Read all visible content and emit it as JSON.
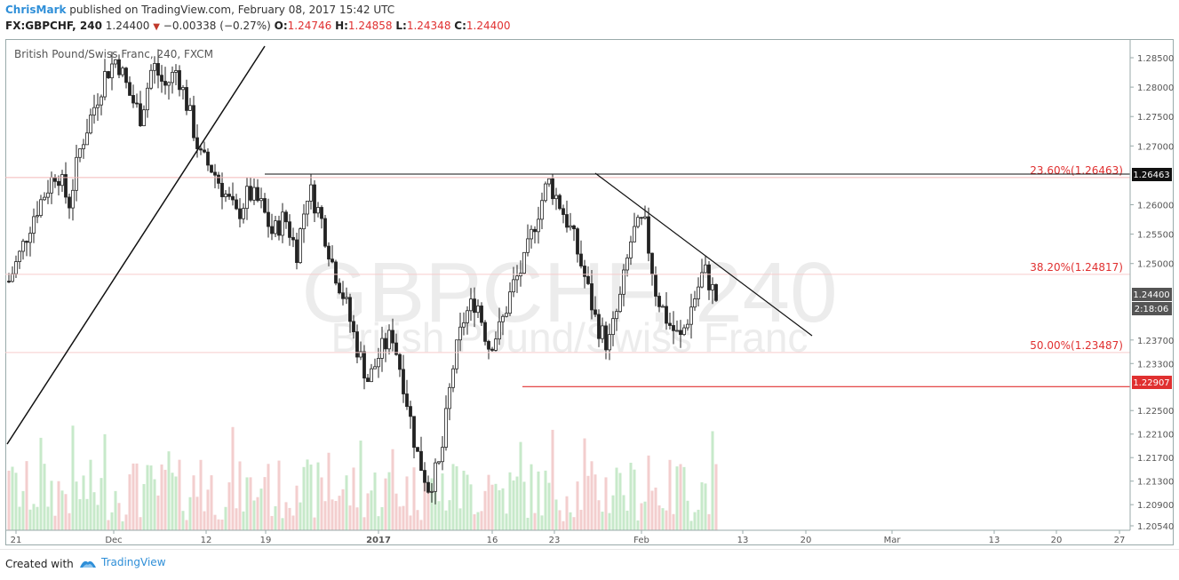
{
  "header": {
    "author": "ChrisMark",
    "published_text": "published on TradingView.com, February 08, 2017 15:42 UTC",
    "symbol": "FX:GBPCHF, 240",
    "last": "1.24400",
    "change": "−0.00338 (−0.27%)",
    "o_label": "O:",
    "o_value": "1.24746",
    "h_label": "H:",
    "h_value": "1.24858",
    "l_label": "L:",
    "l_value": "1.24348",
    "c_label": "C:",
    "c_value": "1.24400"
  },
  "chart_title": "British Pound/Swiss Franc, 240, FXCM",
  "footer": {
    "created_with": "Created with",
    "brand": "TradingView"
  },
  "chart_data": {
    "type": "candlestick",
    "watermark_symbol": "GBPCHF, 240",
    "watermark_name": "British Pound/Swiss Franc",
    "y_ticks": [
      "1.28500",
      "1.28000",
      "1.27500",
      "1.27000",
      "1.26463",
      "1.26000",
      "1.25500",
      "1.25000",
      "1.24400",
      "1.23700",
      "1.23300",
      "1.22907",
      "1.22500",
      "1.22100",
      "1.21700",
      "1.21300",
      "1.20900",
      "1.20540"
    ],
    "x_ticks": [
      "21",
      "Dec",
      "12",
      "19",
      "2017",
      "16",
      "23",
      "Feb",
      "13",
      "20",
      "Mar",
      "13",
      "20",
      "27"
    ],
    "last_price": "1.24400",
    "countdown": "2:18:06",
    "horizontal_levels": [
      {
        "label": "23.60%(1.26463)",
        "value": 1.26463,
        "price_tag": "1.26463"
      },
      {
        "label": "38.20%(1.24817)",
        "value": 1.24817
      },
      {
        "label": "50.00%(1.23487)",
        "value": 1.23487
      },
      {
        "label": "",
        "value": 1.22907,
        "price_tag": "1.22907"
      }
    ],
    "colors": {
      "fib": "#e03030",
      "accent": "#2f8fd8",
      "volume_up": "#b9e4bd",
      "volume_down": "#f0c2c2"
    },
    "price_path_approx": [
      1.247,
      1.252,
      1.258,
      1.262,
      1.266,
      1.26,
      1.27,
      1.276,
      1.282,
      1.285,
      1.279,
      1.275,
      1.284,
      1.28,
      1.283,
      1.276,
      1.268,
      1.266,
      1.262,
      1.258,
      1.262,
      1.26,
      1.255,
      1.258,
      1.252,
      1.263,
      1.258,
      1.25,
      1.244,
      1.236,
      1.23,
      1.235,
      1.238,
      1.229,
      1.218,
      1.212,
      1.216,
      1.232,
      1.241,
      1.244,
      1.236,
      1.239,
      1.246,
      1.25,
      1.258,
      1.264,
      1.26,
      1.255,
      1.248,
      1.24,
      1.236,
      1.244,
      1.255,
      1.257,
      1.245,
      1.24,
      1.237,
      1.243,
      1.249,
      1.244
    ]
  }
}
